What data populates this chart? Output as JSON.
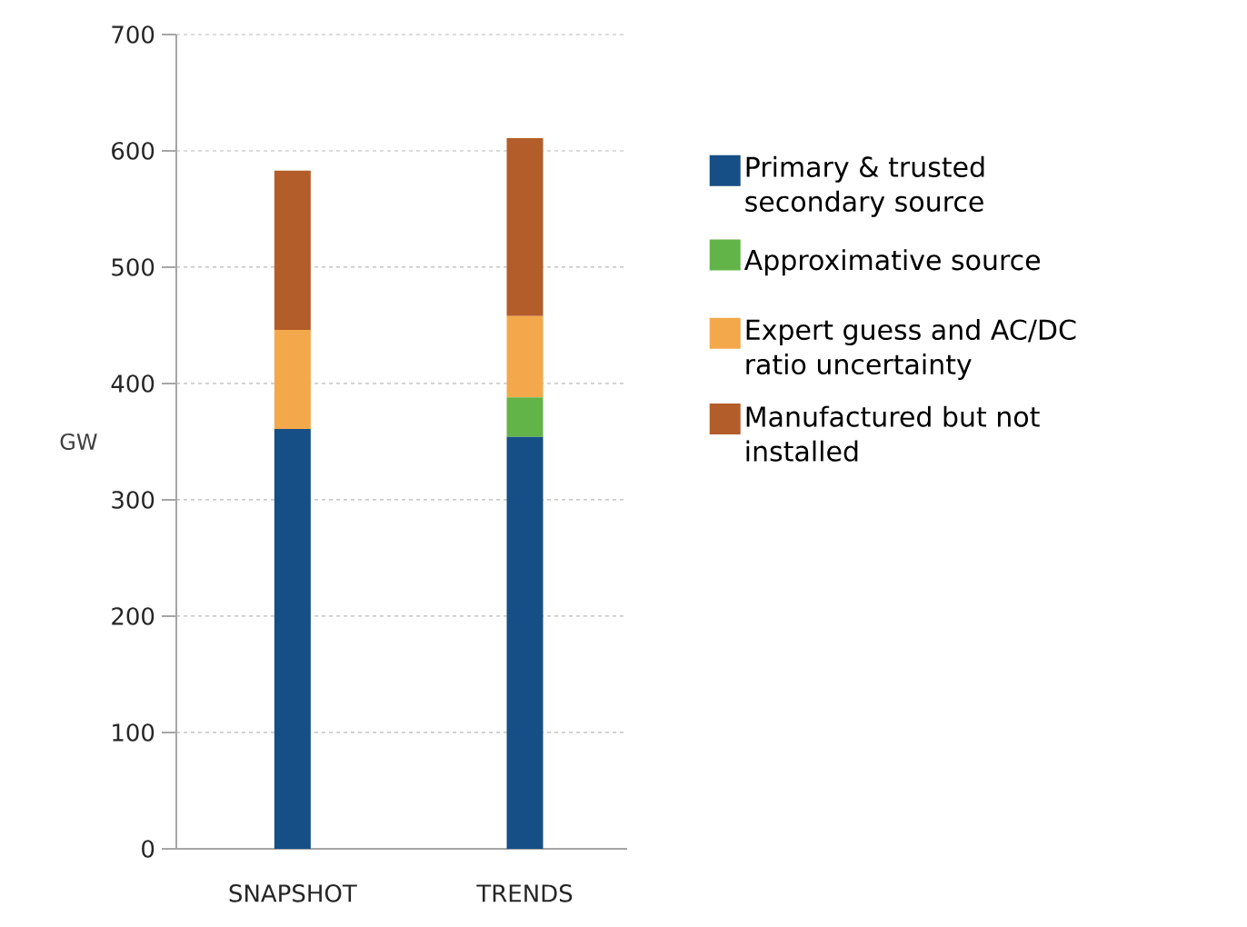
{
  "chart_data": {
    "type": "bar",
    "stacked": true,
    "ylabel": "GW",
    "categories": [
      "SNAPSHOT",
      "TRENDS"
    ],
    "series": [
      {
        "name": "Primary & trusted secondary source",
        "color": "#154f85",
        "values": [
          361,
          354
        ]
      },
      {
        "name": "Approximative source",
        "color": "#62b448",
        "values": [
          0,
          34
        ]
      },
      {
        "name": "Expert guess and AC/DC ratio uncertainty",
        "color": "#f3a94b",
        "values": [
          85,
          70
        ]
      },
      {
        "name": "Manufactured but not installed",
        "color": "#b35d2a",
        "values": [
          137,
          153
        ]
      }
    ],
    "ylim": [
      0,
      700
    ],
    "yticks": [
      0,
      100,
      200,
      300,
      400,
      500,
      600,
      700
    ],
    "grid": "y",
    "legend": "right"
  }
}
